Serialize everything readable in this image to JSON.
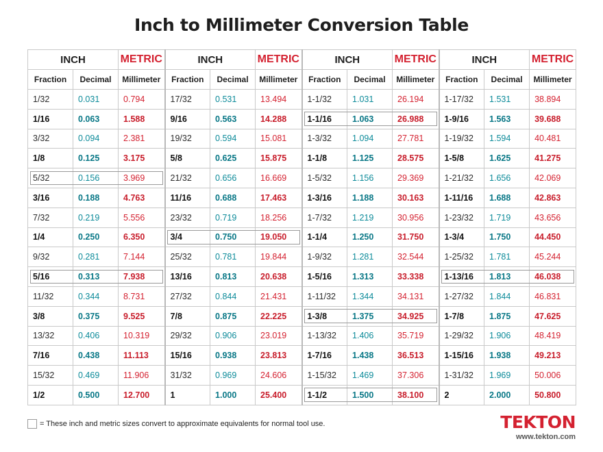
{
  "title": "Inch to Millimeter Conversion Table",
  "headers": {
    "inch": "INCH",
    "metric": "METRIC",
    "fraction": "Fraction",
    "decimal": "Decimal",
    "millimeter": "Millimeter"
  },
  "rows": [
    {
      "bold": false,
      "cells": [
        [
          "1/32",
          "0.031",
          "0.794"
        ],
        [
          "17/32",
          "0.531",
          "13.494"
        ],
        [
          "1-1/32",
          "1.031",
          "26.194"
        ],
        [
          "1-17/32",
          "1.531",
          "38.894"
        ]
      ]
    },
    {
      "bold": true,
      "cells": [
        [
          "1/16",
          "0.063",
          "1.588"
        ],
        [
          "9/16",
          "0.563",
          "14.288"
        ],
        [
          "1-1/16",
          "1.063",
          "26.988"
        ],
        [
          "1-9/16",
          "1.563",
          "39.688"
        ]
      ]
    },
    {
      "bold": false,
      "cells": [
        [
          "3/32",
          "0.094",
          "2.381"
        ],
        [
          "19/32",
          "0.594",
          "15.081"
        ],
        [
          "1-3/32",
          "1.094",
          "27.781"
        ],
        [
          "1-19/32",
          "1.594",
          "40.481"
        ]
      ]
    },
    {
      "bold": true,
      "cells": [
        [
          "1/8",
          "0.125",
          "3.175"
        ],
        [
          "5/8",
          "0.625",
          "15.875"
        ],
        [
          "1-1/8",
          "1.125",
          "28.575"
        ],
        [
          "1-5/8",
          "1.625",
          "41.275"
        ]
      ]
    },
    {
      "bold": false,
      "cells": [
        [
          "5/32",
          "0.156",
          "3.969"
        ],
        [
          "21/32",
          "0.656",
          "16.669"
        ],
        [
          "1-5/32",
          "1.156",
          "29.369"
        ],
        [
          "1-21/32",
          "1.656",
          "42.069"
        ]
      ]
    },
    {
      "bold": true,
      "cells": [
        [
          "3/16",
          "0.188",
          "4.763"
        ],
        [
          "11/16",
          "0.688",
          "17.463"
        ],
        [
          "1-3/16",
          "1.188",
          "30.163"
        ],
        [
          "1-11/16",
          "1.688",
          "42.863"
        ]
      ]
    },
    {
      "bold": false,
      "cells": [
        [
          "7/32",
          "0.219",
          "5.556"
        ],
        [
          "23/32",
          "0.719",
          "18.256"
        ],
        [
          "1-7/32",
          "1.219",
          "30.956"
        ],
        [
          "1-23/32",
          "1.719",
          "43.656"
        ]
      ]
    },
    {
      "bold": true,
      "cells": [
        [
          "1/4",
          "0.250",
          "6.350"
        ],
        [
          "3/4",
          "0.750",
          "19.050"
        ],
        [
          "1-1/4",
          "1.250",
          "31.750"
        ],
        [
          "1-3/4",
          "1.750",
          "44.450"
        ]
      ]
    },
    {
      "bold": false,
      "cells": [
        [
          "9/32",
          "0.281",
          "7.144"
        ],
        [
          "25/32",
          "0.781",
          "19.844"
        ],
        [
          "1-9/32",
          "1.281",
          "32.544"
        ],
        [
          "1-25/32",
          "1.781",
          "45.244"
        ]
      ]
    },
    {
      "bold": true,
      "cells": [
        [
          "5/16",
          "0.313",
          "7.938"
        ],
        [
          "13/16",
          "0.813",
          "20.638"
        ],
        [
          "1-5/16",
          "1.313",
          "33.338"
        ],
        [
          "1-13/16",
          "1.813",
          "46.038"
        ]
      ]
    },
    {
      "bold": false,
      "cells": [
        [
          "11/32",
          "0.344",
          "8.731"
        ],
        [
          "27/32",
          "0.844",
          "21.431"
        ],
        [
          "1-11/32",
          "1.344",
          "34.131"
        ],
        [
          "1-27/32",
          "1.844",
          "46.831"
        ]
      ]
    },
    {
      "bold": true,
      "cells": [
        [
          "3/8",
          "0.375",
          "9.525"
        ],
        [
          "7/8",
          "0.875",
          "22.225"
        ],
        [
          "1-3/8",
          "1.375",
          "34.925"
        ],
        [
          "1-7/8",
          "1.875",
          "47.625"
        ]
      ]
    },
    {
      "bold": false,
      "cells": [
        [
          "13/32",
          "0.406",
          "10.319"
        ],
        [
          "29/32",
          "0.906",
          "23.019"
        ],
        [
          "1-13/32",
          "1.406",
          "35.719"
        ],
        [
          "1-29/32",
          "1.906",
          "48.419"
        ]
      ]
    },
    {
      "bold": true,
      "cells": [
        [
          "7/16",
          "0.438",
          "11.113"
        ],
        [
          "15/16",
          "0.938",
          "23.813"
        ],
        [
          "1-7/16",
          "1.438",
          "36.513"
        ],
        [
          "1-15/16",
          "1.938",
          "49.213"
        ]
      ]
    },
    {
      "bold": false,
      "cells": [
        [
          "15/32",
          "0.469",
          "11.906"
        ],
        [
          "31/32",
          "0.969",
          "24.606"
        ],
        [
          "1-15/32",
          "1.469",
          "37.306"
        ],
        [
          "1-31/32",
          "1.969",
          "50.006"
        ]
      ]
    },
    {
      "bold": true,
      "cells": [
        [
          "1/2",
          "0.500",
          "12.700"
        ],
        [
          "1",
          "1.000",
          "25.400"
        ],
        [
          "1-1/2",
          "1.500",
          "38.100"
        ],
        [
          "2",
          "2.000",
          "50.800"
        ]
      ]
    }
  ],
  "highlights": [
    {
      "row": 4,
      "group": 0
    },
    {
      "row": 9,
      "group": 0
    },
    {
      "row": 7,
      "group": 1
    },
    {
      "row": 1,
      "group": 2
    },
    {
      "row": 11,
      "group": 2
    },
    {
      "row": 15,
      "group": 2
    },
    {
      "row": 9,
      "group": 3
    }
  ],
  "legend": {
    "text": "= These inch and metric sizes convert to approximate equivalents for normal tool use."
  },
  "brand": {
    "logo": "TEKTON",
    "website": "www.tekton.com"
  },
  "colors": {
    "metric_red": "#d42130",
    "decimal_teal": "#0b8a99"
  }
}
